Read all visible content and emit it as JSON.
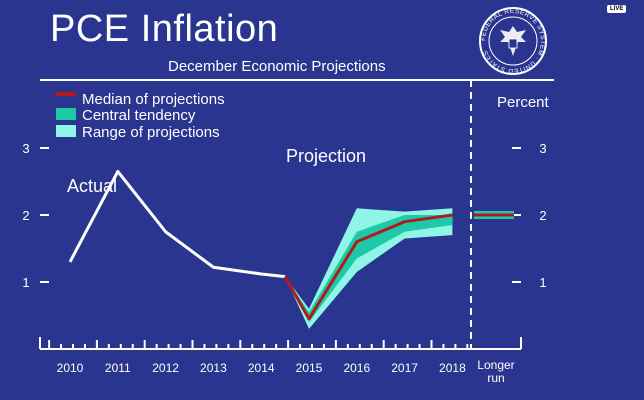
{
  "header": {
    "title": "PCE Inflation",
    "subtitle": "December Economic Projections",
    "live_badge": "LIVE",
    "seal_text": "FEDERAL RESERVE SYSTEM · UNITED STATES"
  },
  "chart_data": {
    "type": "line",
    "ylabel_right": "Percent",
    "ylim": [
      0,
      3.5
    ],
    "yticks": [
      1,
      2,
      3
    ],
    "categories": [
      "2010",
      "2011",
      "2012",
      "2013",
      "2014",
      "2015",
      "2016",
      "2017",
      "2018"
    ],
    "longer_run_label": "Longer run",
    "annotations": {
      "actual": "Actual",
      "projection": "Projection"
    },
    "legend": [
      {
        "key": "median",
        "label": "Median of projections",
        "color": "#b11a1a"
      },
      {
        "key": "central",
        "label": "Central tendency",
        "color": "#1ec9a8"
      },
      {
        "key": "range",
        "label": "Range of projections",
        "color": "#8ff5e6"
      }
    ],
    "actual": {
      "x": [
        2010,
        2011,
        2012,
        2013,
        2014,
        2014.5
      ],
      "y": [
        1.3,
        2.65,
        1.75,
        1.22,
        1.12,
        1.08
      ]
    },
    "projection": {
      "x": [
        2014.5,
        2015,
        2016,
        2017,
        2018
      ],
      "median": [
        1.08,
        0.45,
        1.6,
        1.9,
        2.0
      ],
      "central_low": [
        1.08,
        0.4,
        1.35,
        1.75,
        1.85
      ],
      "central_high": [
        1.08,
        0.55,
        1.75,
        2.0,
        2.0
      ],
      "range_low": [
        1.08,
        0.3,
        1.15,
        1.65,
        1.7
      ],
      "range_high": [
        1.08,
        0.6,
        2.1,
        2.05,
        2.1
      ]
    },
    "longer_run": {
      "median": 2.0,
      "low": 2.0,
      "high": 2.0
    },
    "colors": {
      "background": "#2a3590",
      "line": "#ffffff",
      "median": "#b11a1a",
      "central": "#1ec9a8",
      "range": "#8ff5e6"
    }
  }
}
